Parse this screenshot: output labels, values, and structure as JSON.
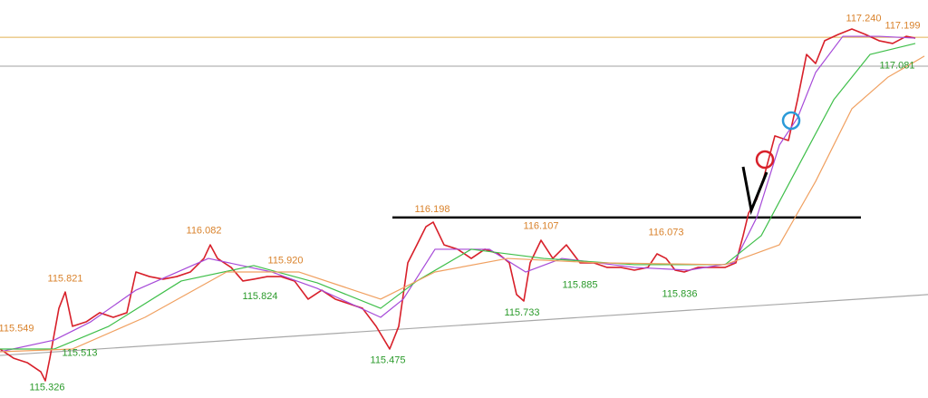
{
  "chart_data": {
    "type": "line",
    "xlim": [
      0,
      256
    ],
    "ylim": [
      115.22,
      117.39
    ],
    "series": [
      {
        "color": "#d8202a",
        "width": 1.6,
        "x": [
          0,
          3.75,
          7.5,
          11.25,
          12.5,
          13.75,
          16.25,
          18,
          20,
          23.75,
          27.5,
          31.25,
          35,
          37.5,
          41.25,
          45,
          48.75,
          52.5,
          56.25,
          58,
          60,
          63.75,
          67,
          70,
          73.75,
          77.5,
          81.25,
          85,
          88.75,
          92.5,
          96.25,
          100,
          103.75,
          107.5,
          110,
          112.5,
          115,
          117.5,
          119.5,
          122.5,
          126.25,
          130,
          133.75,
          137.5,
          140.5,
          142.5,
          144.5,
          146.25,
          149.25,
          152.5,
          156.25,
          160,
          163.75,
          167.5,
          171.25,
          175,
          178.75,
          181.25,
          183.75,
          186.25,
          188.75,
          192.5,
          196.25,
          200,
          203,
          205,
          206.5,
          208.75,
          210.75,
          213.75,
          217.5,
          220,
          222.5,
          225,
          227.5,
          231.25,
          235,
          238.75,
          242.5,
          246.25,
          250,
          252.5
        ],
        "values": [
          115.487,
          115.437,
          115.413,
          115.363,
          115.314,
          115.437,
          115.709,
          115.798,
          115.611,
          115.635,
          115.685,
          115.66,
          115.685,
          115.907,
          115.882,
          115.868,
          115.882,
          115.907,
          115.981,
          116.055,
          115.981,
          115.932,
          115.858,
          115.868,
          115.882,
          115.882,
          115.858,
          115.759,
          115.808,
          115.759,
          115.734,
          115.709,
          115.611,
          115.487,
          115.611,
          115.957,
          116.055,
          116.154,
          116.179,
          116.055,
          116.031,
          115.981,
          116.031,
          116.006,
          115.957,
          115.784,
          115.749,
          115.957,
          116.08,
          115.981,
          116.055,
          115.957,
          115.957,
          115.932,
          115.932,
          115.917,
          115.932,
          116.006,
          115.981,
          115.917,
          115.907,
          115.932,
          115.932,
          115.932,
          115.957,
          116.105,
          116.228,
          116.303,
          116.426,
          116.649,
          116.624,
          116.846,
          117.093,
          117.044,
          117.168,
          117.202,
          117.232,
          117.202,
          117.168,
          117.153,
          117.192,
          117.182
        ]
      },
      {
        "color": "#a64ad8",
        "width": 1.2,
        "x": [
          0,
          15,
          25,
          37.5,
          57.5,
          75,
          87.5,
          105,
          111.25,
          120,
          135,
          145,
          155,
          175,
          190,
          202.5,
          208.75,
          215,
          220,
          225,
          232.5,
          242.5,
          252.5
        ],
        "values": [
          115.472,
          115.536,
          115.635,
          115.808,
          115.981,
          115.907,
          115.818,
          115.66,
          115.759,
          116.031,
          116.031,
          115.907,
          115.981,
          115.932,
          115.917,
          115.957,
          116.204,
          116.599,
          116.747,
          116.995,
          117.192,
          117.192,
          117.182
        ]
      },
      {
        "color": "#3fbf4a",
        "width": 1.2,
        "x": [
          0,
          15,
          30,
          50,
          70,
          87.5,
          105,
          115,
          130,
          150,
          175,
          200,
          210,
          220,
          230,
          240,
          252.5
        ],
        "values": [
          115.487,
          115.487,
          115.611,
          115.858,
          115.942,
          115.848,
          115.709,
          115.858,
          116.031,
          115.981,
          115.947,
          115.947,
          116.105,
          116.476,
          116.846,
          117.093,
          117.153
        ]
      },
      {
        "color": "#f0a060",
        "width": 1.2,
        "x": [
          0,
          20,
          40,
          62.5,
          82.5,
          105,
          120,
          140,
          165,
          200,
          215,
          225,
          235,
          245,
          255
        ],
        "values": [
          115.472,
          115.487,
          115.66,
          115.907,
          115.907,
          115.759,
          115.907,
          115.981,
          115.957,
          115.947,
          116.055,
          116.401,
          116.797,
          116.97,
          117.084
        ]
      }
    ],
    "hlines": [
      {
        "value": 117.187,
        "color": "#e0b050",
        "width": 1
      },
      {
        "value": 117.029,
        "color": "#a0a0a0",
        "width": 1
      },
      {
        "value": 116.204,
        "color": "#000000",
        "width": 2.5,
        "xrange": [
          108.25,
          237.5
        ]
      }
    ],
    "trendline": {
      "x": [
        0,
        256
      ],
      "values": [
        115.452,
        115.784
      ],
      "color": "#a8a8a8"
    },
    "annotations": [
      {
        "x": 4.5,
        "value": 115.549,
        "color": "#d9822b",
        "position": "above"
      },
      {
        "x": 13,
        "value": 115.326,
        "color": "#2a9a2a",
        "position": "below"
      },
      {
        "x": 18,
        "value": 115.821,
        "color": "#d9822b",
        "position": "above"
      },
      {
        "x": 22,
        "value": 115.513,
        "color": "#2a9a2a",
        "position": "below"
      },
      {
        "x": 56.25,
        "value": 116.082,
        "color": "#d9822b",
        "position": "above"
      },
      {
        "x": 78.75,
        "value": 115.92,
        "label": "115.920",
        "color": "#d9822b",
        "position": "above"
      },
      {
        "x": 71.75,
        "value": 115.824,
        "color": "#2a9a2a",
        "position": "below"
      },
      {
        "x": 119.25,
        "value": 116.198,
        "color": "#d9822b",
        "position": "above"
      },
      {
        "x": 107,
        "value": 115.475,
        "color": "#2a9a2a",
        "position": "below"
      },
      {
        "x": 149.25,
        "value": 116.107,
        "color": "#d9822b",
        "position": "above"
      },
      {
        "x": 144,
        "value": 115.733,
        "color": "#2a9a2a",
        "position": "below"
      },
      {
        "x": 160,
        "value": 115.885,
        "color": "#2a9a2a",
        "position": "below"
      },
      {
        "x": 183.75,
        "value": 116.073,
        "color": "#d9822b",
        "position": "above"
      },
      {
        "x": 187.5,
        "value": 115.836,
        "color": "#2a9a2a",
        "position": "below"
      },
      {
        "x": 238.25,
        "value": 117.24,
        "label": "117.240",
        "color": "#d9822b",
        "position": "above"
      },
      {
        "x": 249,
        "value": 117.199,
        "color": "#d9822b",
        "position": "above"
      },
      {
        "x": 247.5,
        "value": 117.081,
        "color": "#2a9a2a",
        "position": "below"
      }
    ]
  }
}
